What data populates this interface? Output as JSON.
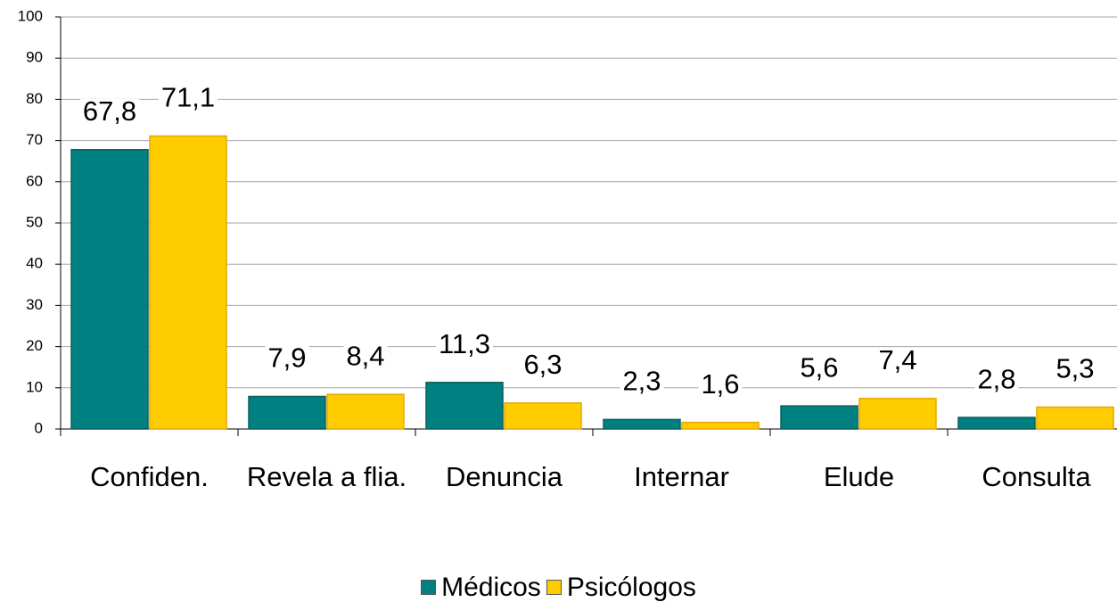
{
  "chart_data": {
    "type": "bar",
    "categories": [
      "Confiden.",
      "Revela a flia.",
      "Denuncia",
      "Internar",
      "Elude",
      "Consulta"
    ],
    "series": [
      {
        "name": "Médicos",
        "color": "#008080",
        "values": [
          67.8,
          7.9,
          11.3,
          2.3,
          5.6,
          2.8
        ],
        "value_labels": [
          "67,8",
          "7,9",
          "11,3",
          "2,3",
          "5,6",
          "2,8"
        ]
      },
      {
        "name": "Psicólogos",
        "color": "#ffcc00",
        "values": [
          71.1,
          8.4,
          6.3,
          1.6,
          7.4,
          5.3
        ],
        "value_labels": [
          "71,1",
          "8,4",
          "6,3",
          "1,6",
          "7,4",
          "5,3"
        ]
      }
    ],
    "ylim": [
      0,
      100
    ],
    "yticks": [
      0,
      10,
      20,
      30,
      40,
      50,
      60,
      70,
      80,
      90,
      100
    ],
    "grid": true,
    "legend": "bottom"
  }
}
